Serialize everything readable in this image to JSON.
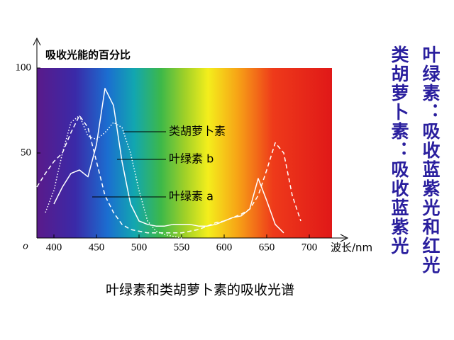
{
  "chart_data": {
    "type": "line",
    "y_label": "吸收光能的百分比",
    "x_label": "波长/nm",
    "origin_label": "o",
    "title": "叶绿素和类胡萝卜素的吸收光谱",
    "x": [
      380,
      390,
      400,
      410,
      420,
      430,
      440,
      450,
      460,
      470,
      480,
      490,
      500,
      510,
      520,
      530,
      540,
      550,
      560,
      570,
      580,
      590,
      600,
      610,
      620,
      630,
      640,
      650,
      660,
      670,
      680,
      690,
      700
    ],
    "series": [
      {
        "name": "类胡萝卜素",
        "color": "#ffffff",
        "dash": "dotted",
        "values": [
          null,
          15,
          28,
          50,
          68,
          72,
          60,
          58,
          62,
          68,
          65,
          50,
          28,
          10,
          4,
          2,
          1,
          0,
          null,
          null,
          null,
          null,
          null,
          null,
          null,
          null,
          null,
          null,
          null,
          null,
          null,
          null,
          null
        ]
      },
      {
        "name": "叶绿素 b",
        "color": "#ffffff",
        "dash": "solid",
        "values": [
          null,
          null,
          20,
          30,
          38,
          40,
          36,
          55,
          88,
          78,
          45,
          20,
          10,
          8,
          7,
          7,
          8,
          8,
          8,
          7,
          7,
          8,
          10,
          12,
          13,
          17,
          35,
          22,
          8,
          3,
          null,
          null,
          null
        ]
      },
      {
        "name": "叶绿素 a",
        "color": "#ffffff",
        "dash": "dashed",
        "values": [
          30,
          38,
          45,
          50,
          62,
          72,
          65,
          45,
          25,
          15,
          8,
          5,
          4,
          3,
          3,
          3,
          3,
          3,
          4,
          5,
          7,
          9,
          10,
          12,
          14,
          17,
          25,
          40,
          56,
          50,
          25,
          10,
          null
        ]
      }
    ],
    "xlim": [
      380,
      725
    ],
    "ylim": [
      0,
      100
    ],
    "xticks": [
      400,
      450,
      500,
      550,
      600,
      650,
      700
    ],
    "yticks": [
      50,
      100
    ]
  },
  "notes": [
    "叶绿素：吸收蓝紫光和红光",
    "类胡萝卜素：吸收蓝紫光"
  ]
}
